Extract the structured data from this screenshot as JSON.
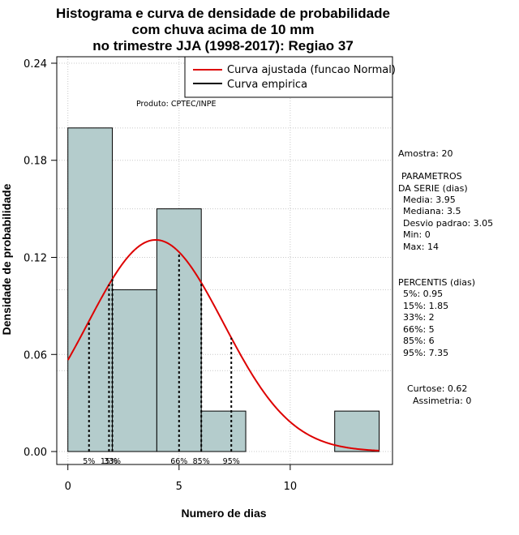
{
  "chart_data": {
    "type": "bar",
    "title_lines": [
      "Histograma e curva de densidade de probabilidade",
      "com chuva acima de 10 mm",
      "no trimestre JJA (1998-2017): Regiao 37"
    ],
    "xlabel": "Numero de dias",
    "ylabel": "Densidade de probabilidade",
    "xlim": [
      -0.5,
      14.6
    ],
    "ylim": [
      -0.008,
      0.244
    ],
    "x_ticks": [
      0,
      5,
      10
    ],
    "y_ticks": [
      0.0,
      0.06,
      0.12,
      0.18,
      0.24
    ],
    "y_tick_labels": [
      "0.00",
      "0.06",
      "0.12",
      "0.18",
      "0.24"
    ],
    "grid": true,
    "bins": [
      {
        "start": 0,
        "end": 2,
        "density": 0.2
      },
      {
        "start": 2,
        "end": 4,
        "density": 0.1
      },
      {
        "start": 4,
        "end": 6,
        "density": 0.15
      },
      {
        "start": 6,
        "end": 8,
        "density": 0.025
      },
      {
        "start": 8,
        "end": 10,
        "density": 0.0
      },
      {
        "start": 10,
        "end": 12,
        "density": 0.0
      },
      {
        "start": 12,
        "end": 14,
        "density": 0.025
      }
    ],
    "bar_color": "#b4cccc",
    "normal_curve": {
      "mean": 3.95,
      "sd": 3.05,
      "color": "#dd0000"
    },
    "percentiles": [
      {
        "label": "5%",
        "value": 0.95
      },
      {
        "label": "15%",
        "value": 1.85
      },
      {
        "label": "33%",
        "value": 2
      },
      {
        "label": "66%",
        "value": 5
      },
      {
        "label": "85%",
        "value": 6
      },
      {
        "label": "95%",
        "value": 7.35
      }
    ],
    "legend": {
      "position": "top-right",
      "entries": [
        {
          "label": "Curva ajustada (funcao Normal)",
          "color": "#dd0000"
        },
        {
          "label": "Curva empirica",
          "color": "#000000"
        }
      ]
    }
  },
  "annotations": {
    "product": "Produto: CPTEC/INPE"
  },
  "side_panel": {
    "sample": "Amostra: 20",
    "params_title_1": "PARAMETROS",
    "params_title_2": "DA SERIE (dias)",
    "params": [
      "Media: 3.95",
      "Mediana: 3.5",
      "Desvio padrao: 3.05",
      "Min: 0",
      "Max: 14"
    ],
    "percentis_title": "PERCENTIS (dias)",
    "percentis": [
      "5%: 0.95",
      "15%: 1.85",
      "33%: 2",
      "66%: 5",
      "85%: 6",
      "95%: 7.35"
    ],
    "curtose": "Curtose: 0.62",
    "assimetria": "Assimetria: 0"
  }
}
